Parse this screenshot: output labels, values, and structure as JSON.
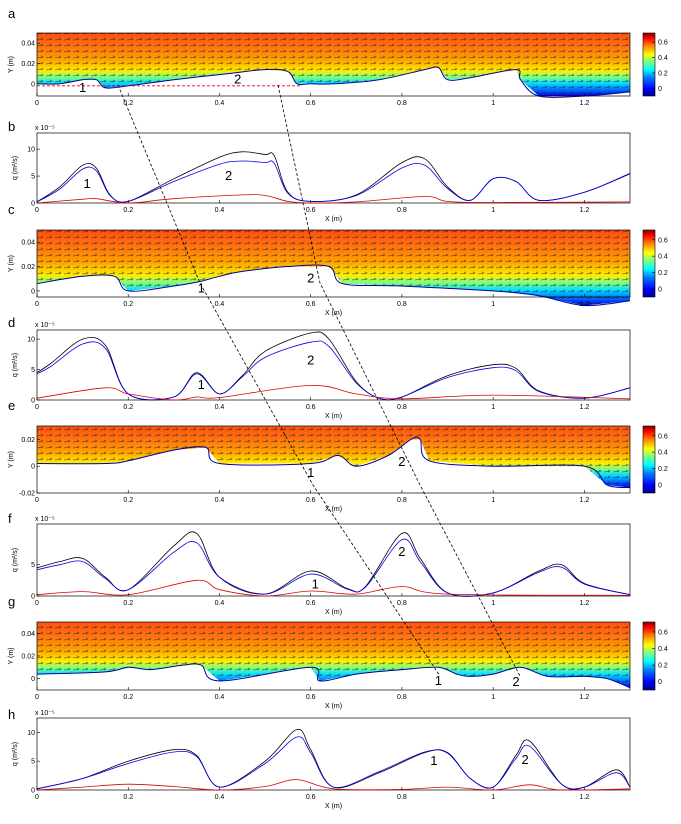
{
  "chart_data": {
    "type": "composite",
    "colorbar": {
      "colors": [
        "#00008f",
        "#0000ff",
        "#0080ff",
        "#00ffff",
        "#80ff80",
        "#ffff00",
        "#ff8000",
        "#ff0000",
        "#800000"
      ],
      "range": [
        -0.1,
        0.72
      ],
      "ticks": [
        0,
        0.2,
        0.4,
        0.6
      ],
      "tick_labels": [
        "0",
        "0.2",
        "0.4",
        "0.6"
      ]
    },
    "x_ticks": [
      0,
      0.2,
      0.4,
      0.6,
      0.8,
      1,
      1.2
    ],
    "x_tick_labels": [
      "0",
      "0.2",
      "0.4",
      "0.6",
      "0.8",
      "1",
      "1.2"
    ],
    "xlim": [
      0,
      1.3
    ],
    "field_panels": [
      {
        "letter": "a",
        "ylabel": "Y (m)",
        "ylim": [
          -0.012,
          0.05
        ],
        "yticks": [
          0,
          0.02,
          0.04
        ],
        "ytick_labels": [
          "0",
          "0.02",
          "0.04"
        ],
        "bed": [
          [
            0,
            0
          ],
          [
            0.05,
            0
          ],
          [
            0.1,
            0.004
          ],
          [
            0.13,
            0.004
          ],
          [
            0.15,
            -0.004
          ],
          [
            0.2,
            -0.002
          ],
          [
            0.3,
            0.004
          ],
          [
            0.42,
            0.01
          ],
          [
            0.5,
            0.014
          ],
          [
            0.55,
            0.012
          ],
          [
            0.57,
            0
          ],
          [
            0.6,
            0
          ],
          [
            0.65,
            0
          ],
          [
            0.75,
            0.004
          ],
          [
            0.85,
            0.014
          ],
          [
            0.88,
            0.016
          ],
          [
            0.9,
            0.004
          ],
          [
            0.95,
            0.006
          ],
          [
            1.05,
            0.014
          ],
          [
            1.06,
            0.004
          ],
          [
            1.1,
            -0.012
          ],
          [
            1.2,
            -0.012
          ],
          [
            1.3,
            -0.008
          ]
        ],
        "annotations": [
          {
            "text": "1",
            "x": 0.1,
            "y": -0.004
          },
          {
            "text": "2",
            "x": 0.44,
            "y": 0.004
          }
        ],
        "reference_line": {
          "x": [
            0,
            0.58
          ],
          "y": [
            -0.002,
            -0.002
          ],
          "color": "#e8000b"
        }
      },
      {
        "letter": "c",
        "ylabel": "Y (m)",
        "ylim": [
          -0.005,
          0.05
        ],
        "yticks": [
          0,
          0.02,
          0.04
        ],
        "ytick_labels": [
          "0",
          "0.02",
          "0.04"
        ],
        "bed": [
          [
            0,
            0.006
          ],
          [
            0.1,
            0.012
          ],
          [
            0.17,
            0.012
          ],
          [
            0.2,
            0
          ],
          [
            0.3,
            0.004
          ],
          [
            0.36,
            0.008
          ],
          [
            0.4,
            0.012
          ],
          [
            0.45,
            0.016
          ],
          [
            0.55,
            0.02
          ],
          [
            0.64,
            0.02
          ],
          [
            0.67,
            0.006
          ],
          [
            0.8,
            0.004
          ],
          [
            1,
            0
          ],
          [
            1.1,
            -0.004
          ],
          [
            1.2,
            -0.012
          ],
          [
            1.3,
            -0.008
          ]
        ],
        "annotations": [
          {
            "text": "1",
            "x": 0.36,
            "y": 0.002
          },
          {
            "text": "2",
            "x": 0.6,
            "y": 0.01
          }
        ]
      },
      {
        "letter": "e",
        "ylabel": "Y (m)",
        "ylim": [
          -0.02,
          0.03
        ],
        "yticks": [
          -0.02,
          0,
          0.02
        ],
        "ytick_labels": [
          "-0.02",
          "0",
          "0.02"
        ],
        "bed": [
          [
            0,
            0.002
          ],
          [
            0.15,
            0.002
          ],
          [
            0.2,
            0.004
          ],
          [
            0.3,
            0.012
          ],
          [
            0.37,
            0.014
          ],
          [
            0.4,
            0.002
          ],
          [
            0.6,
            0.002
          ],
          [
            0.66,
            0.008
          ],
          [
            0.7,
            0
          ],
          [
            0.77,
            0.008
          ],
          [
            0.82,
            0.02
          ],
          [
            0.84,
            0.02
          ],
          [
            0.86,
            0.004
          ],
          [
            1.0,
            0
          ],
          [
            1.2,
            0
          ],
          [
            1.25,
            -0.014
          ],
          [
            1.3,
            -0.016
          ]
        ],
        "annotations": [
          {
            "text": "1",
            "x": 0.6,
            "y": -0.005
          },
          {
            "text": "2",
            "x": 0.8,
            "y": 0.003
          }
        ]
      },
      {
        "letter": "g",
        "ylabel": "Y (m)",
        "ylim": [
          -0.01,
          0.05
        ],
        "yticks": [
          0,
          0.02,
          0.04
        ],
        "ytick_labels": [
          "0",
          "0.02",
          "0.04"
        ],
        "bed": [
          [
            0,
            0.004
          ],
          [
            0.15,
            0.006
          ],
          [
            0.2,
            0.01
          ],
          [
            0.25,
            0.008
          ],
          [
            0.32,
            0.012
          ],
          [
            0.36,
            0.012
          ],
          [
            0.4,
            -0.002
          ],
          [
            0.6,
            0.01
          ],
          [
            0.62,
            -0.002
          ],
          [
            0.7,
            0.004
          ],
          [
            0.8,
            0.008
          ],
          [
            0.88,
            0.01
          ],
          [
            0.92,
            0.004
          ],
          [
            0.95,
            0.002
          ],
          [
            1,
            0.004
          ],
          [
            1.06,
            0.01
          ],
          [
            1.12,
            0.002
          ],
          [
            1.2,
            0.002
          ],
          [
            1.25,
            0
          ],
          [
            1.3,
            -0.008
          ]
        ],
        "annotations": [
          {
            "text": "1",
            "x": 0.88,
            "y": -0.002
          },
          {
            "text": "2",
            "x": 1.05,
            "y": -0.003
          }
        ]
      }
    ],
    "flux_panels": [
      {
        "letter": "b",
        "ylabel": "q (m²/s)",
        "exponent": "x 10⁻⁵",
        "ylim": [
          0,
          13
        ],
        "yticks": [
          0,
          5,
          10
        ],
        "ytick_labels": [
          "0",
          "5",
          "10"
        ],
        "series": [
          {
            "color": "#000000",
            "x": [
              0,
              0.05,
              0.1,
              0.13,
              0.16,
              0.2,
              0.3,
              0.4,
              0.45,
              0.5,
              0.52,
              0.55,
              0.6,
              0.7,
              0.8,
              0.85,
              0.9,
              0.95,
              1,
              1.05,
              1.1,
              1.2,
              1.3
            ],
            "y": [
              0.2,
              3,
              7,
              6.5,
              1.5,
              0.3,
              4.5,
              8.5,
              9.5,
              9,
              8.8,
              2,
              0.3,
              1.5,
              7.5,
              8.2,
              3,
              0.5,
              4.5,
              4,
              0.5,
              2,
              5.5
            ]
          },
          {
            "color": "#0000ee",
            "x": [
              0,
              0.05,
              0.1,
              0.13,
              0.16,
              0.2,
              0.3,
              0.4,
              0.45,
              0.5,
              0.52,
              0.55,
              0.6,
              0.7,
              0.8,
              0.85,
              0.9,
              0.95,
              1,
              1.05,
              1.1,
              1.2,
              1.3
            ],
            "y": [
              0.2,
              2.6,
              6.3,
              6,
              1.4,
              0.3,
              4,
              7.2,
              7.8,
              7.5,
              7.4,
              1.8,
              0.3,
              1.4,
              6.5,
              7,
              2.7,
              0.5,
              4.5,
              4,
              0.5,
              2,
              5.4
            ]
          },
          {
            "color": "#e00000",
            "x": [
              0,
              0.1,
              0.13,
              0.2,
              0.3,
              0.45,
              0.5,
              0.55,
              0.6,
              0.7,
              0.85,
              0.9,
              1,
              1.3
            ],
            "y": [
              0,
              0.7,
              0.8,
              0,
              0.8,
              1.5,
              1.4,
              0.3,
              0,
              0.2,
              1.2,
              0.3,
              0.1,
              0.2
            ]
          }
        ],
        "annotations": [
          {
            "text": "1",
            "x": 0.11,
            "y": 3.5
          },
          {
            "text": "2",
            "x": 0.42,
            "y": 5
          }
        ]
      },
      {
        "letter": "d",
        "ylabel": "q (m²/s)",
        "exponent": "x 10⁻⁵",
        "ylim": [
          0,
          11.5
        ],
        "yticks": [
          0,
          5,
          10
        ],
        "ytick_labels": [
          "0",
          "5",
          "10"
        ],
        "series": [
          {
            "color": "#000000",
            "x": [
              0,
              0.03,
              0.1,
              0.15,
              0.2,
              0.3,
              0.35,
              0.4,
              0.45,
              0.5,
              0.6,
              0.64,
              0.7,
              0.75,
              0.8,
              0.9,
              1,
              1.05,
              1.1,
              1.2,
              1.3
            ],
            "y": [
              4.5,
              6,
              10,
              9,
              1,
              0.5,
              4.5,
              1,
              4,
              8,
              11,
              10,
              3,
              0.3,
              0.5,
              4,
              5.8,
              5.2,
              1.5,
              0.3,
              2
            ]
          },
          {
            "color": "#0000ee",
            "x": [
              0,
              0.03,
              0.1,
              0.15,
              0.2,
              0.3,
              0.35,
              0.4,
              0.45,
              0.5,
              0.6,
              0.64,
              0.7,
              0.75,
              0.8,
              0.9,
              1,
              1.05,
              1.1,
              1.2,
              1.3
            ],
            "y": [
              4.3,
              5.5,
              9.2,
              8.5,
              1,
              0.5,
              4.3,
              1,
              3.8,
              7,
              9.5,
              8.8,
              2.8,
              0.3,
              0.5,
              3.7,
              5.3,
              4.8,
              1.4,
              0.3,
              2
            ]
          },
          {
            "color": "#e00000",
            "x": [
              0,
              0.15,
              0.2,
              0.3,
              0.35,
              0.4,
              0.6,
              0.7,
              0.8,
              1,
              1.3
            ],
            "y": [
              0.3,
              2,
              1,
              0,
              0.5,
              0.4,
              2.4,
              1,
              0.2,
              0.8,
              0.2
            ]
          }
        ],
        "annotations": [
          {
            "text": "1",
            "x": 0.36,
            "y": 2.5
          },
          {
            "text": "2",
            "x": 0.6,
            "y": 6.5
          }
        ]
      },
      {
        "letter": "f",
        "ylabel": "q (m²/s)",
        "exponent": "x 10⁻⁵",
        "ylim": [
          0,
          11.5
        ],
        "yticks": [
          0,
          5
        ],
        "ytick_labels": [
          "0",
          "5"
        ],
        "series": [
          {
            "color": "#000000",
            "x": [
              0,
              0.05,
              0.1,
              0.15,
              0.2,
              0.3,
              0.35,
              0.4,
              0.5,
              0.6,
              0.68,
              0.72,
              0.8,
              0.84,
              0.9,
              1,
              1.1,
              1.15,
              1.2,
              1.3
            ],
            "y": [
              4.5,
              5.5,
              6,
              3,
              1,
              8,
              10,
              3,
              0.3,
              4,
              1.2,
              1.5,
              10,
              6,
              0.5,
              0.5,
              4,
              5,
              2,
              0.2
            ]
          },
          {
            "color": "#0000ee",
            "x": [
              0,
              0.05,
              0.1,
              0.15,
              0.2,
              0.3,
              0.35,
              0.4,
              0.5,
              0.6,
              0.68,
              0.72,
              0.8,
              0.84,
              0.9,
              1,
              1.1,
              1.15,
              1.2,
              1.3
            ],
            "y": [
              4.2,
              5,
              5.5,
              2.8,
              1,
              7,
              8.5,
              3,
              0.3,
              3.5,
              1.1,
              1.4,
              9,
              5.5,
              0.5,
              0.5,
              3.8,
              4.6,
              1.9,
              0.2
            ]
          },
          {
            "color": "#e00000",
            "x": [
              0,
              0.1,
              0.2,
              0.35,
              0.4,
              0.5,
              0.6,
              0.7,
              0.8,
              0.9,
              1.3
            ],
            "y": [
              0.2,
              0.7,
              0.2,
              2.5,
              1,
              0,
              0.8,
              0.3,
              1.5,
              0.3,
              0.1
            ]
          }
        ],
        "annotations": [
          {
            "text": "1",
            "x": 0.61,
            "y": 1.8
          },
          {
            "text": "2",
            "x": 0.8,
            "y": 7
          }
        ]
      },
      {
        "letter": "h",
        "ylabel": "q (m²/s)",
        "exponent": "x 10⁻⁵",
        "ylim": [
          0,
          12.5
        ],
        "yticks": [
          0,
          5,
          10
        ],
        "ytick_labels": [
          "0",
          "5",
          "10"
        ],
        "series": [
          {
            "color": "#000000",
            "x": [
              0,
              0.1,
              0.2,
              0.3,
              0.35,
              0.4,
              0.5,
              0.57,
              0.6,
              0.65,
              0.75,
              0.85,
              0.9,
              0.95,
              1,
              1.05,
              1.08,
              1.15,
              1.2,
              1.27,
              1.3
            ],
            "y": [
              0.2,
              2,
              5,
              7,
              6,
              0.5,
              5,
              10.5,
              7,
              0.5,
              3,
              6.5,
              6.5,
              2,
              0.5,
              6,
              8.5,
              1,
              0.5,
              3.5,
              0.5
            ]
          },
          {
            "color": "#0000ee",
            "x": [
              0,
              0.1,
              0.2,
              0.3,
              0.35,
              0.4,
              0.5,
              0.57,
              0.6,
              0.65,
              0.75,
              0.85,
              0.9,
              0.95,
              1,
              1.05,
              1.08,
              1.15,
              1.2,
              1.27,
              1.3
            ],
            "y": [
              0.2,
              2,
              4.6,
              6.6,
              5.8,
              0.5,
              4.6,
              9.2,
              6.5,
              0.5,
              3.2,
              6.6,
              6.4,
              2,
              0.5,
              5.5,
              7.6,
              1,
              0.5,
              3,
              0.5
            ]
          },
          {
            "color": "#e00000",
            "x": [
              0,
              0.1,
              0.2,
              0.3,
              0.4,
              0.5,
              0.57,
              0.65,
              0.8,
              0.9,
              1,
              1.08,
              1.15,
              1.3
            ],
            "y": [
              0,
              0.5,
              1,
              0.6,
              0,
              0.6,
              1.8,
              0.2,
              0.1,
              0.5,
              0,
              0.9,
              0,
              0.2
            ]
          }
        ],
        "annotations": [
          {
            "text": "1",
            "x": 0.87,
            "y": 5
          },
          {
            "text": "2",
            "x": 1.07,
            "y": 5.2
          }
        ]
      }
    ],
    "x_axis_label": "X (m)"
  }
}
